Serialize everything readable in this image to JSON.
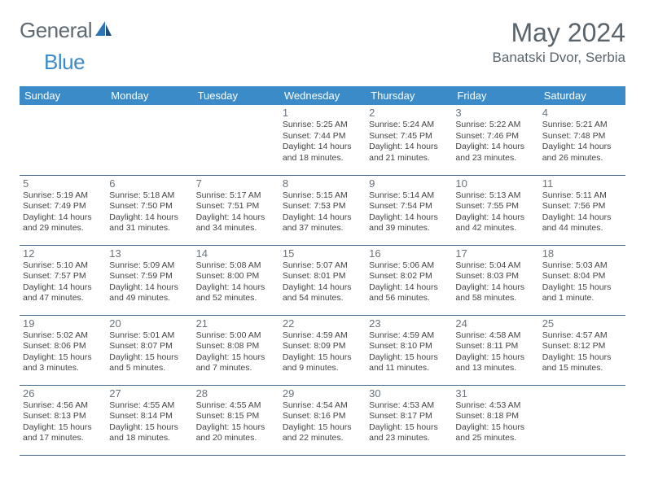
{
  "brand": {
    "part1": "General",
    "part2": "Blue"
  },
  "title": "May 2024",
  "location": "Banatski Dvor, Serbia",
  "colors": {
    "header_bg": "#3b8bc9",
    "header_text": "#ffffff",
    "cell_border": "#446688",
    "brand_gray": "#5f6a72",
    "brand_blue": "#3b8bc9",
    "title_color": "#5a646c",
    "daynum_color": "#6a737b",
    "text_color": "#444444",
    "background": "#ffffff"
  },
  "typography": {
    "title_size": 32,
    "location_size": 17,
    "header_size": 13,
    "daynum_size": 13,
    "body_size": 10.5
  },
  "day_headers": [
    "Sunday",
    "Monday",
    "Tuesday",
    "Wednesday",
    "Thursday",
    "Friday",
    "Saturday"
  ],
  "weeks": [
    [
      {
        "n": "",
        "sr": "",
        "ss": "",
        "dl": ""
      },
      {
        "n": "",
        "sr": "",
        "ss": "",
        "dl": ""
      },
      {
        "n": "",
        "sr": "",
        "ss": "",
        "dl": ""
      },
      {
        "n": "1",
        "sr": "Sunrise: 5:25 AM",
        "ss": "Sunset: 7:44 PM",
        "dl": "Daylight: 14 hours and 18 minutes."
      },
      {
        "n": "2",
        "sr": "Sunrise: 5:24 AM",
        "ss": "Sunset: 7:45 PM",
        "dl": "Daylight: 14 hours and 21 minutes."
      },
      {
        "n": "3",
        "sr": "Sunrise: 5:22 AM",
        "ss": "Sunset: 7:46 PM",
        "dl": "Daylight: 14 hours and 23 minutes."
      },
      {
        "n": "4",
        "sr": "Sunrise: 5:21 AM",
        "ss": "Sunset: 7:48 PM",
        "dl": "Daylight: 14 hours and 26 minutes."
      }
    ],
    [
      {
        "n": "5",
        "sr": "Sunrise: 5:19 AM",
        "ss": "Sunset: 7:49 PM",
        "dl": "Daylight: 14 hours and 29 minutes."
      },
      {
        "n": "6",
        "sr": "Sunrise: 5:18 AM",
        "ss": "Sunset: 7:50 PM",
        "dl": "Daylight: 14 hours and 31 minutes."
      },
      {
        "n": "7",
        "sr": "Sunrise: 5:17 AM",
        "ss": "Sunset: 7:51 PM",
        "dl": "Daylight: 14 hours and 34 minutes."
      },
      {
        "n": "8",
        "sr": "Sunrise: 5:15 AM",
        "ss": "Sunset: 7:53 PM",
        "dl": "Daylight: 14 hours and 37 minutes."
      },
      {
        "n": "9",
        "sr": "Sunrise: 5:14 AM",
        "ss": "Sunset: 7:54 PM",
        "dl": "Daylight: 14 hours and 39 minutes."
      },
      {
        "n": "10",
        "sr": "Sunrise: 5:13 AM",
        "ss": "Sunset: 7:55 PM",
        "dl": "Daylight: 14 hours and 42 minutes."
      },
      {
        "n": "11",
        "sr": "Sunrise: 5:11 AM",
        "ss": "Sunset: 7:56 PM",
        "dl": "Daylight: 14 hours and 44 minutes."
      }
    ],
    [
      {
        "n": "12",
        "sr": "Sunrise: 5:10 AM",
        "ss": "Sunset: 7:57 PM",
        "dl": "Daylight: 14 hours and 47 minutes."
      },
      {
        "n": "13",
        "sr": "Sunrise: 5:09 AM",
        "ss": "Sunset: 7:59 PM",
        "dl": "Daylight: 14 hours and 49 minutes."
      },
      {
        "n": "14",
        "sr": "Sunrise: 5:08 AM",
        "ss": "Sunset: 8:00 PM",
        "dl": "Daylight: 14 hours and 52 minutes."
      },
      {
        "n": "15",
        "sr": "Sunrise: 5:07 AM",
        "ss": "Sunset: 8:01 PM",
        "dl": "Daylight: 14 hours and 54 minutes."
      },
      {
        "n": "16",
        "sr": "Sunrise: 5:06 AM",
        "ss": "Sunset: 8:02 PM",
        "dl": "Daylight: 14 hours and 56 minutes."
      },
      {
        "n": "17",
        "sr": "Sunrise: 5:04 AM",
        "ss": "Sunset: 8:03 PM",
        "dl": "Daylight: 14 hours and 58 minutes."
      },
      {
        "n": "18",
        "sr": "Sunrise: 5:03 AM",
        "ss": "Sunset: 8:04 PM",
        "dl": "Daylight: 15 hours and 1 minute."
      }
    ],
    [
      {
        "n": "19",
        "sr": "Sunrise: 5:02 AM",
        "ss": "Sunset: 8:06 PM",
        "dl": "Daylight: 15 hours and 3 minutes."
      },
      {
        "n": "20",
        "sr": "Sunrise: 5:01 AM",
        "ss": "Sunset: 8:07 PM",
        "dl": "Daylight: 15 hours and 5 minutes."
      },
      {
        "n": "21",
        "sr": "Sunrise: 5:00 AM",
        "ss": "Sunset: 8:08 PM",
        "dl": "Daylight: 15 hours and 7 minutes."
      },
      {
        "n": "22",
        "sr": "Sunrise: 4:59 AM",
        "ss": "Sunset: 8:09 PM",
        "dl": "Daylight: 15 hours and 9 minutes."
      },
      {
        "n": "23",
        "sr": "Sunrise: 4:59 AM",
        "ss": "Sunset: 8:10 PM",
        "dl": "Daylight: 15 hours and 11 minutes."
      },
      {
        "n": "24",
        "sr": "Sunrise: 4:58 AM",
        "ss": "Sunset: 8:11 PM",
        "dl": "Daylight: 15 hours and 13 minutes."
      },
      {
        "n": "25",
        "sr": "Sunrise: 4:57 AM",
        "ss": "Sunset: 8:12 PM",
        "dl": "Daylight: 15 hours and 15 minutes."
      }
    ],
    [
      {
        "n": "26",
        "sr": "Sunrise: 4:56 AM",
        "ss": "Sunset: 8:13 PM",
        "dl": "Daylight: 15 hours and 17 minutes."
      },
      {
        "n": "27",
        "sr": "Sunrise: 4:55 AM",
        "ss": "Sunset: 8:14 PM",
        "dl": "Daylight: 15 hours and 18 minutes."
      },
      {
        "n": "28",
        "sr": "Sunrise: 4:55 AM",
        "ss": "Sunset: 8:15 PM",
        "dl": "Daylight: 15 hours and 20 minutes."
      },
      {
        "n": "29",
        "sr": "Sunrise: 4:54 AM",
        "ss": "Sunset: 8:16 PM",
        "dl": "Daylight: 15 hours and 22 minutes."
      },
      {
        "n": "30",
        "sr": "Sunrise: 4:53 AM",
        "ss": "Sunset: 8:17 PM",
        "dl": "Daylight: 15 hours and 23 minutes."
      },
      {
        "n": "31",
        "sr": "Sunrise: 4:53 AM",
        "ss": "Sunset: 8:18 PM",
        "dl": "Daylight: 15 hours and 25 minutes."
      },
      {
        "n": "",
        "sr": "",
        "ss": "",
        "dl": ""
      }
    ]
  ]
}
